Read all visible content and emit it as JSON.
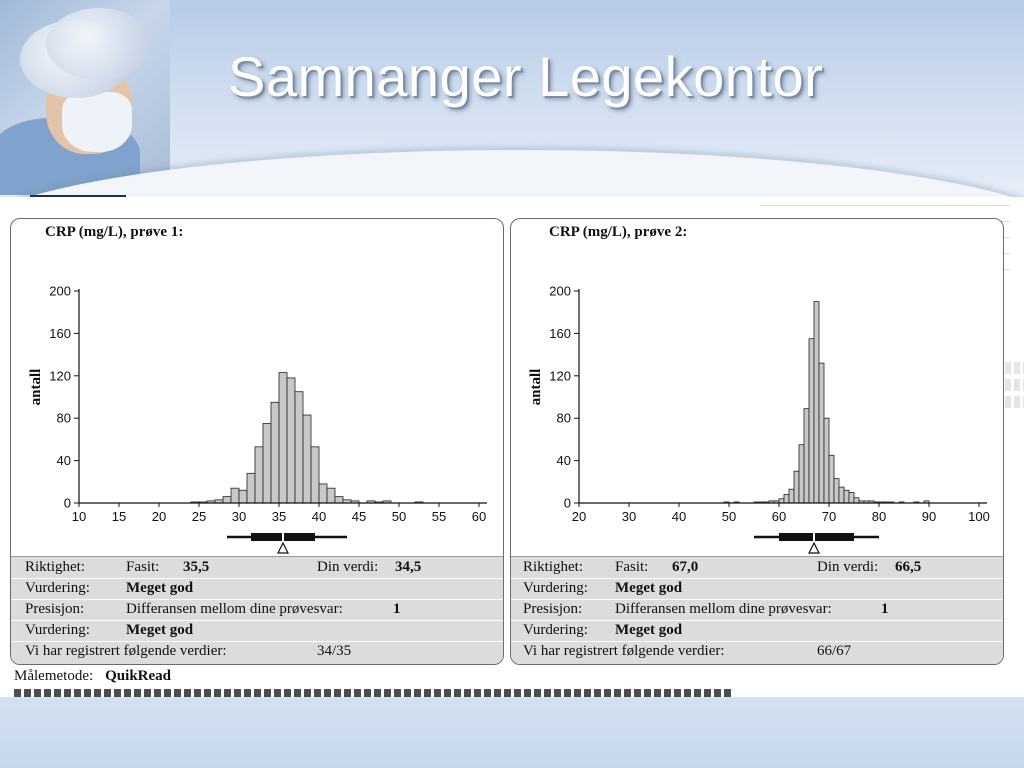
{
  "title": "Samnanger Legekontor",
  "panels": [
    {
      "heading": "CRP (mg/L), prøve 1:",
      "riktighet_label": "Riktighet:",
      "fasit_label": "Fasit:",
      "fasit_value": "35,5",
      "din_verdi_label": "Din verdi:",
      "din_verdi_value": "34,5",
      "vurdering1_label": "Vurdering:",
      "vurdering1_value": "Meget god",
      "presisjon_label": "Presisjon:",
      "presisjon_text": "Differansen mellom dine prøvesvar:",
      "presisjon_value": "1",
      "vurdering2_label": "Vurdering:",
      "vurdering2_value": "Meget god",
      "registrert_label": "Vi har registrert følgende verdier:",
      "registrert_value": "34/35"
    },
    {
      "heading": "CRP (mg/L), prøve 2:",
      "riktighet_label": "Riktighet:",
      "fasit_label": "Fasit:",
      "fasit_value": "67,0",
      "din_verdi_label": "Din verdi:",
      "din_verdi_value": "66,5",
      "vurdering1_label": "Vurdering:",
      "vurdering1_value": "Meget god",
      "presisjon_label": "Presisjon:",
      "presisjon_text": "Differansen mellom dine prøvesvar:",
      "presisjon_value": "1",
      "vurdering2_label": "Vurdering:",
      "vurdering2_value": "Meget god",
      "registrert_label": "Vi har registrert følgende verdier:",
      "registrert_value": "66/67"
    }
  ],
  "metode": {
    "label": "Målemetode:",
    "value": "QuikRead"
  },
  "chart_data": [
    {
      "type": "bar",
      "title": "CRP (mg/L), prøve 1:",
      "ylabel": "antall",
      "xlabel": "",
      "xlim": [
        10,
        60
      ],
      "ylim": [
        0,
        200
      ],
      "xticks": [
        10,
        15,
        20,
        25,
        30,
        35,
        40,
        45,
        50,
        55,
        60
      ],
      "yticks": [
        0,
        40,
        80,
        120,
        160,
        200
      ],
      "bin_width": 1,
      "bin_starts": [
        24,
        25,
        26,
        27,
        28,
        29,
        30,
        31,
        32,
        33,
        34,
        35,
        36,
        37,
        38,
        39,
        40,
        41,
        42,
        43,
        44,
        45,
        46,
        47,
        48,
        49,
        50,
        51,
        52,
        53
      ],
      "values": [
        1,
        1,
        2,
        3,
        6,
        14,
        12,
        28,
        53,
        75,
        95,
        123,
        118,
        105,
        83,
        53,
        18,
        14,
        6,
        3,
        2,
        0,
        2,
        1,
        2,
        0,
        0,
        0,
        1,
        0
      ],
      "boxplot": {
        "whisker_low": 28.5,
        "q1": 31.5,
        "median": 35.5,
        "q3": 39.5,
        "whisker_high": 43.5
      },
      "marker": 35.5,
      "grid": false
    },
    {
      "type": "bar",
      "title": "CRP (mg/L), prøve 2:",
      "ylabel": "antall",
      "xlabel": "",
      "xlim": [
        20,
        100
      ],
      "ylim": [
        0,
        200
      ],
      "xticks": [
        20,
        30,
        40,
        50,
        60,
        70,
        80,
        90,
        100
      ],
      "yticks": [
        0,
        40,
        80,
        120,
        160,
        200
      ],
      "bin_width": 1,
      "bin_starts": [
        49,
        50,
        51,
        52,
        53,
        54,
        55,
        56,
        57,
        58,
        59,
        60,
        61,
        62,
        63,
        64,
        65,
        66,
        67,
        68,
        69,
        70,
        71,
        72,
        73,
        74,
        75,
        76,
        77,
        78,
        79,
        80,
        81,
        82,
        83,
        84,
        85,
        86,
        87,
        88,
        89,
        90
      ],
      "values": [
        1,
        0,
        1,
        0,
        0,
        0,
        1,
        1,
        1,
        2,
        2,
        4,
        8,
        13,
        30,
        55,
        89,
        155,
        190,
        132,
        80,
        45,
        23,
        15,
        12,
        10,
        5,
        2,
        2,
        2,
        1,
        1,
        1,
        1,
        0,
        1,
        0,
        0,
        1,
        0,
        2,
        0
      ],
      "boxplot": {
        "whisker_low": 55,
        "q1": 60,
        "median": 67,
        "q3": 75,
        "whisker_high": 80
      },
      "marker": 67,
      "grid": false
    }
  ]
}
